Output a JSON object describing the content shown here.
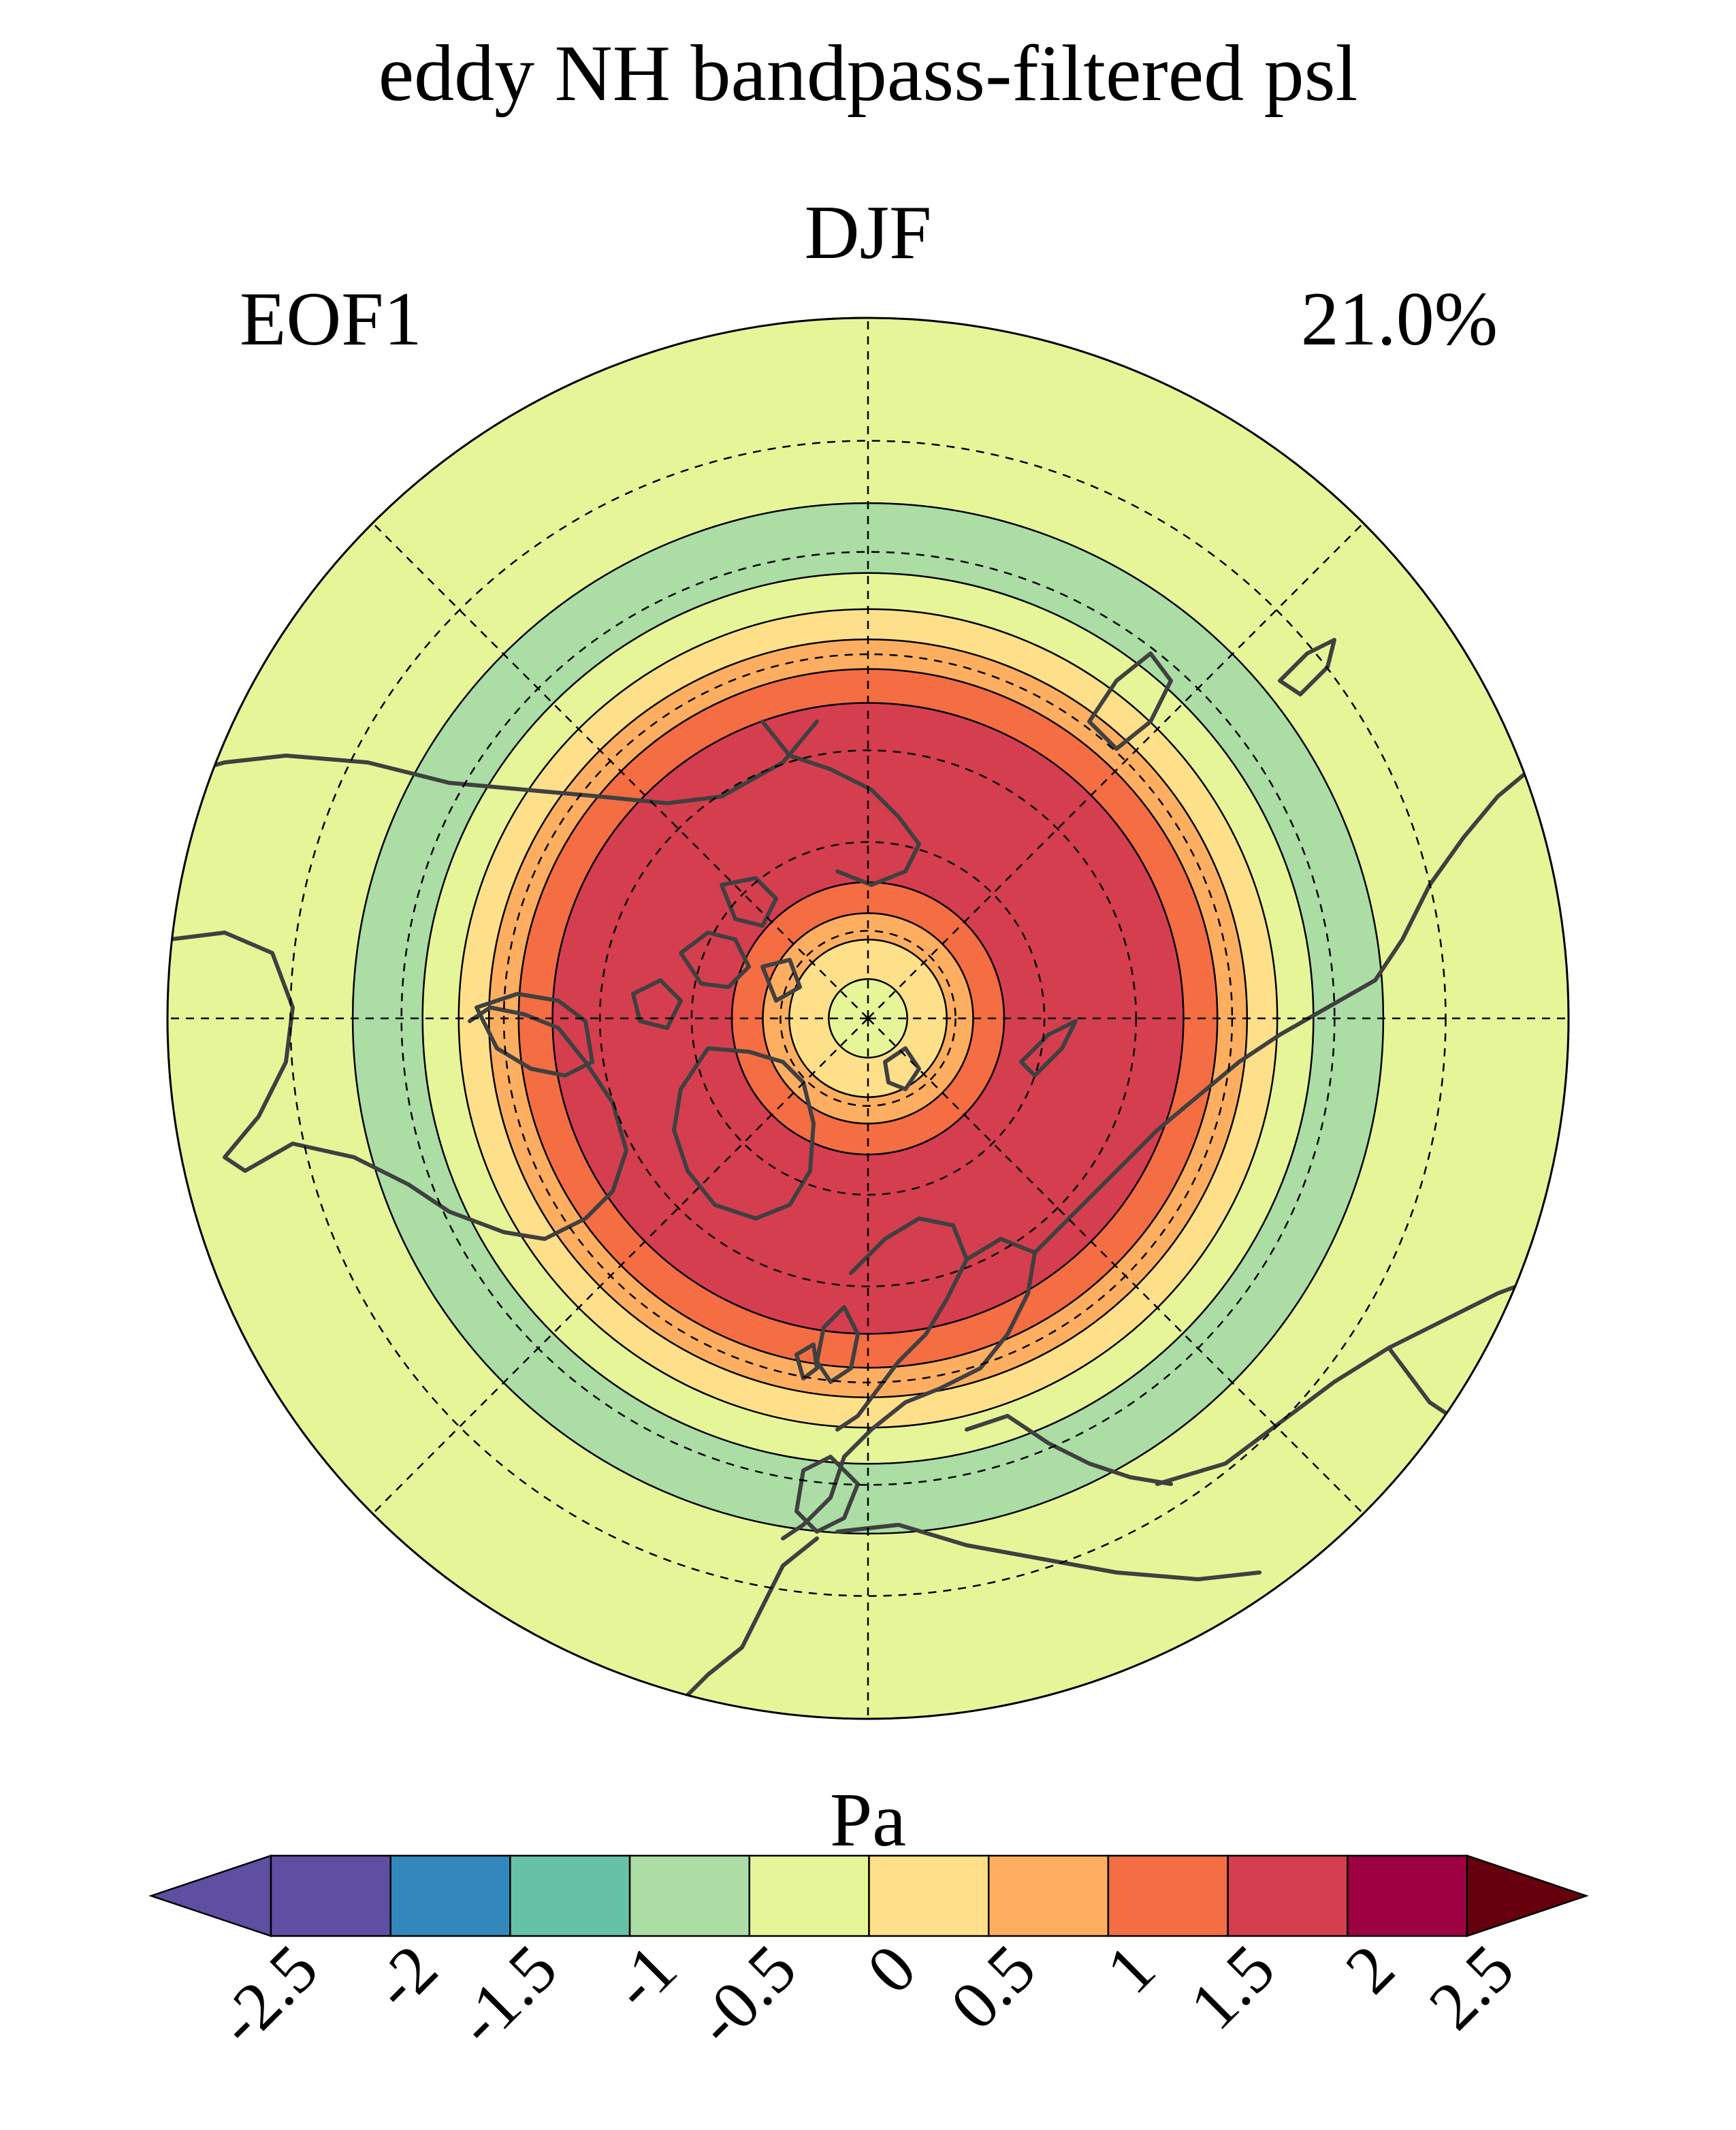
{
  "chart_data": {
    "type": "heatmap",
    "projection": "north-polar-stereographic",
    "title": "eddy NH bandpass-filtered psl",
    "season": "DJF",
    "mode": "EOF1",
    "variance_explained": "21.0%",
    "colorbar": {
      "label": "Pa",
      "levels": [
        -2.5,
        -2,
        -1.5,
        -1,
        -0.5,
        0,
        0.5,
        1,
        1.5,
        2,
        2.5
      ],
      "tick_labels": [
        "-2.5",
        "-2",
        "-1.5",
        "-1",
        "-0.5",
        "0",
        "0.5",
        "1",
        "1.5",
        "2",
        "2.5"
      ],
      "colors": [
        "#5e4fa2",
        "#5e4fa2",
        "#3288bd",
        "#66c2a5",
        "#abdda4",
        "#e6f598",
        "#fee08b",
        "#fdae61",
        "#f46d43",
        "#d53e4f",
        "#9e0142",
        "#67000d"
      ],
      "extend": "both"
    },
    "rings": [
      {
        "lat_from": 90,
        "lat_to": 85.5,
        "value_range": [
          0,
          0.5
        ],
        "color": "#e6f598"
      },
      {
        "lat_from": 85.5,
        "lat_to": 81,
        "value_range": [
          0.5,
          1
        ],
        "color": "#fee08b"
      },
      {
        "lat_from": 81,
        "lat_to": 78,
        "value_range": [
          1,
          1.5
        ],
        "color": "#fdae61"
      },
      {
        "lat_from": 78,
        "lat_to": 74.5,
        "value_range": [
          1.5,
          2
        ],
        "color": "#f46d43"
      },
      {
        "lat_from": 74.5,
        "lat_to": 55,
        "value_range": [
          2,
          2.5
        ],
        "color": "#d53e4f"
      },
      {
        "lat_from": 55,
        "lat_to": 51.5,
        "value_range": [
          1.5,
          2
        ],
        "color": "#f46d43"
      },
      {
        "lat_from": 51.5,
        "lat_to": 48.5,
        "value_range": [
          1,
          1.5
        ],
        "color": "#fdae61"
      },
      {
        "lat_from": 48.5,
        "lat_to": 45.5,
        "value_range": [
          0.5,
          1
        ],
        "color": "#fee08b"
      },
      {
        "lat_from": 45.5,
        "lat_to": 42,
        "value_range": [
          0,
          0.5
        ],
        "color": "#e6f598"
      },
      {
        "lat_from": 42,
        "lat_to": 35.5,
        "value_range": [
          -0.5,
          0
        ],
        "color": "#abdda4"
      },
      {
        "lat_from": 35.5,
        "lat_to": 20,
        "value_range": [
          0,
          0.5
        ],
        "color": "#e6f598"
      }
    ],
    "gridlines": {
      "latitudes": [
        80,
        70,
        60,
        50,
        40,
        30
      ],
      "longitudes": [
        0,
        45,
        90,
        135,
        180,
        225,
        270,
        315
      ]
    },
    "domain_lat_min": 20
  }
}
